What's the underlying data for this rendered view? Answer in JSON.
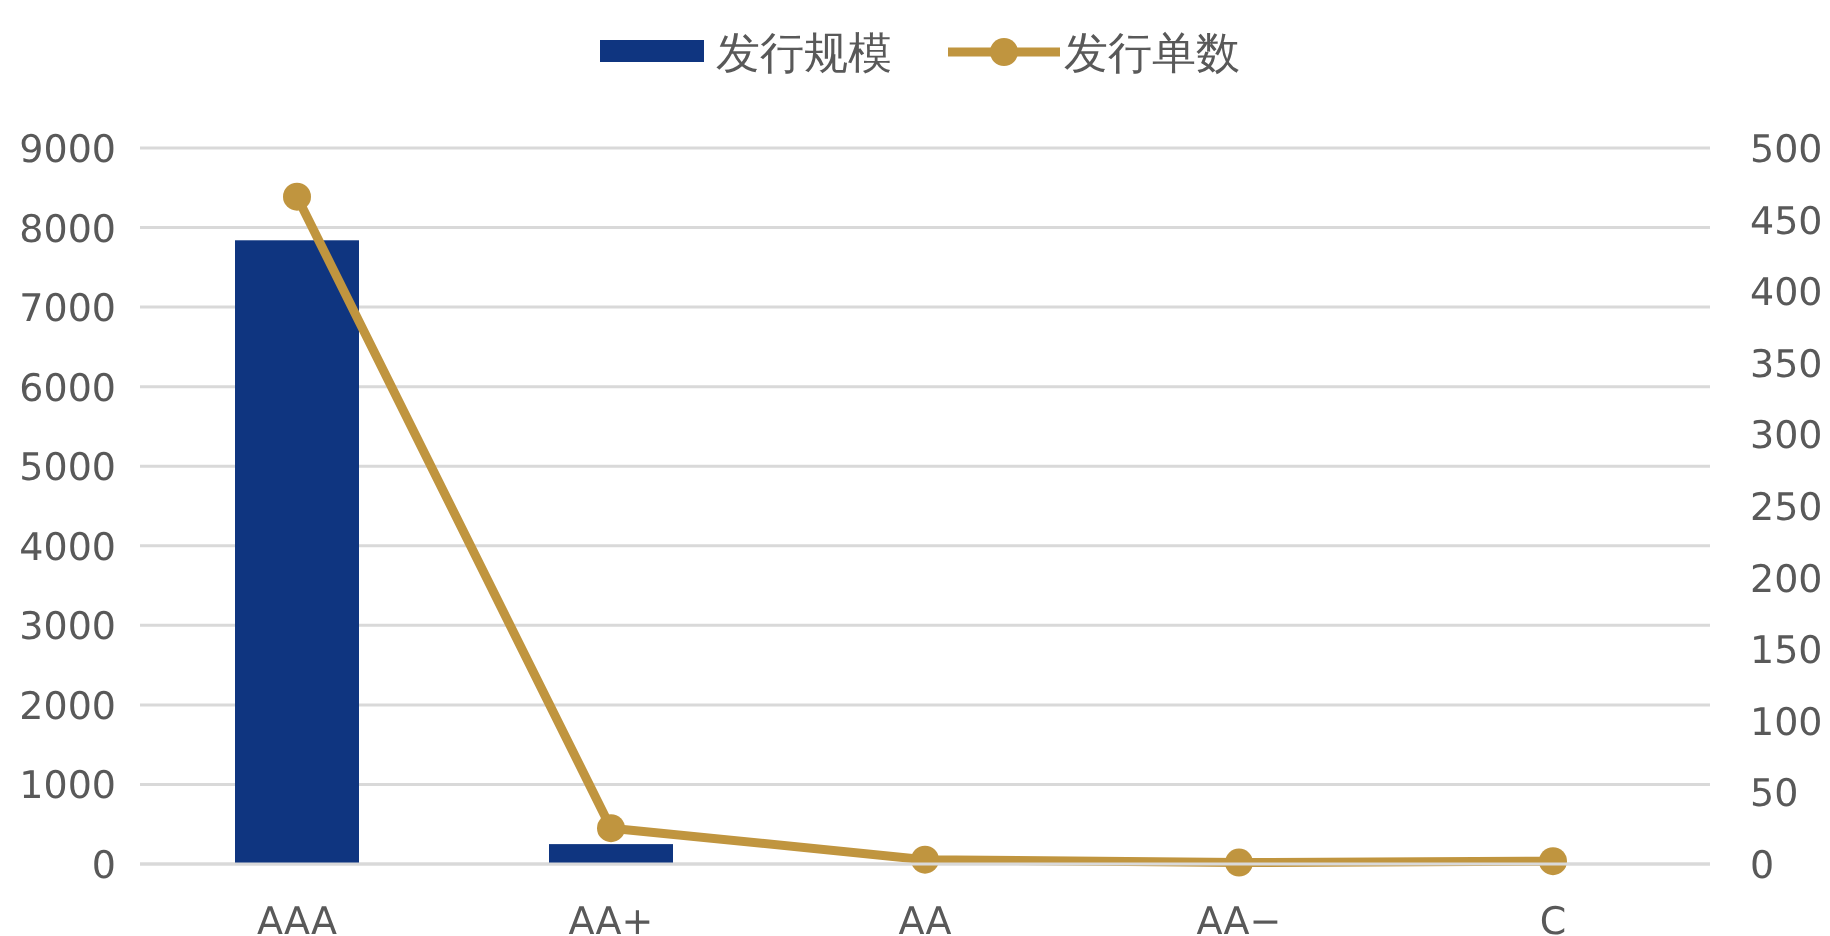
{
  "chart_data": {
    "type": "bar",
    "categories": [
      "AAA",
      "AA+",
      "AA",
      "AA−",
      "C"
    ],
    "series": [
      {
        "name": "发行规模",
        "color": "#0f3580",
        "values": [
          7840,
          250,
          0,
          0,
          0
        ]
      },
      {
        "name": "发行单数",
        "type": "line",
        "axis": "y2",
        "color": "#c0953f",
        "marker": "circle",
        "values": [
          466,
          25,
          3,
          1,
          2
        ]
      }
    ],
    "ylim": [
      0,
      9000
    ],
    "yticks": [
      0,
      1000,
      2000,
      3000,
      4000,
      5000,
      6000,
      7000,
      8000,
      9000
    ],
    "y2lim": [
      0,
      500
    ],
    "y2ticks": [
      0,
      50,
      100,
      150,
      200,
      250,
      300,
      350,
      400,
      450,
      500
    ],
    "grid": "y",
    "legend": "top"
  }
}
